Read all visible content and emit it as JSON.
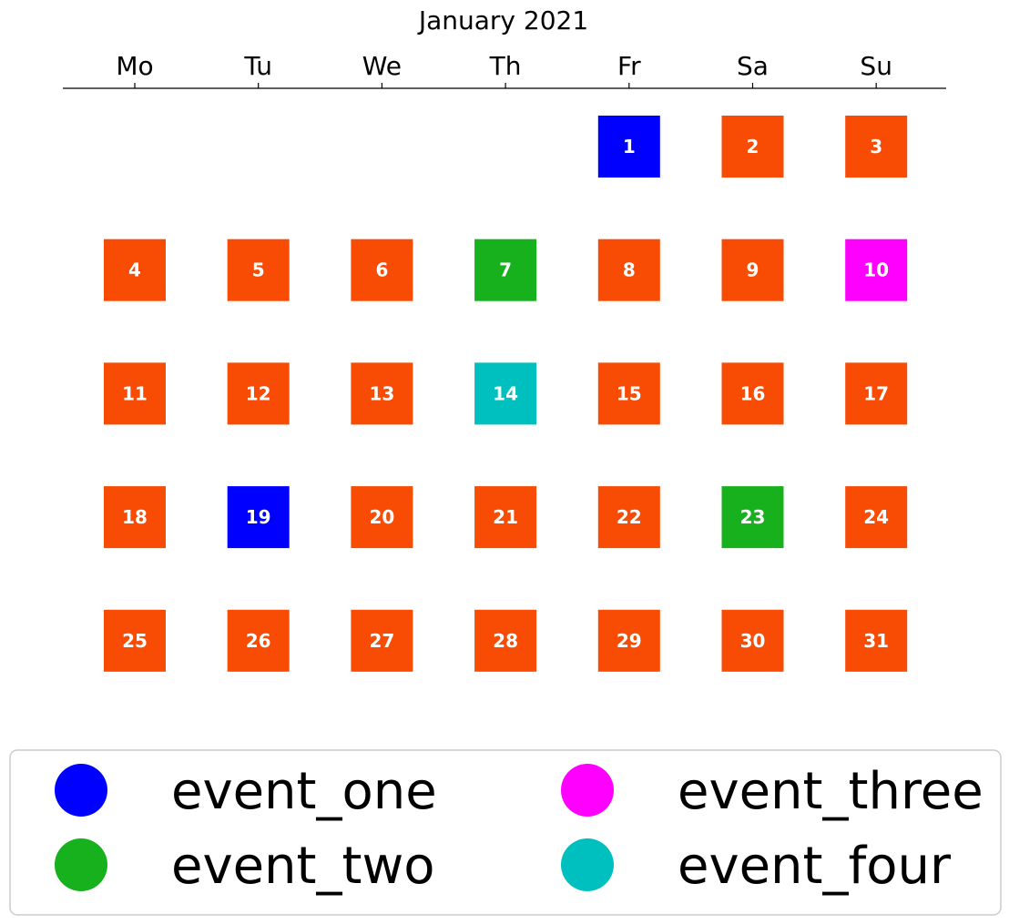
{
  "chart_data": {
    "type": "heatmap",
    "title": "January 2021",
    "weekdays": [
      "Mo",
      "Tu",
      "We",
      "Th",
      "Fr",
      "Sa",
      "Su"
    ],
    "first_weekday_index": 4,
    "days_in_month": 31,
    "default_color": "#f84b04",
    "days": [
      {
        "day": "1",
        "event": "event_one"
      },
      {
        "day": "2",
        "event": null
      },
      {
        "day": "3",
        "event": null
      },
      {
        "day": "4",
        "event": null
      },
      {
        "day": "5",
        "event": null
      },
      {
        "day": "6",
        "event": null
      },
      {
        "day": "7",
        "event": "event_two"
      },
      {
        "day": "8",
        "event": null
      },
      {
        "day": "9",
        "event": null
      },
      {
        "day": "10",
        "event": "event_three"
      },
      {
        "day": "11",
        "event": null
      },
      {
        "day": "12",
        "event": null
      },
      {
        "day": "13",
        "event": null
      },
      {
        "day": "14",
        "event": "event_four"
      },
      {
        "day": "15",
        "event": null
      },
      {
        "day": "16",
        "event": null
      },
      {
        "day": "17",
        "event": null
      },
      {
        "day": "18",
        "event": null
      },
      {
        "day": "19",
        "event": "event_one"
      },
      {
        "day": "20",
        "event": null
      },
      {
        "day": "21",
        "event": null
      },
      {
        "day": "22",
        "event": null
      },
      {
        "day": "23",
        "event": "event_two"
      },
      {
        "day": "24",
        "event": null
      },
      {
        "day": "25",
        "event": null
      },
      {
        "day": "26",
        "event": null
      },
      {
        "day": "27",
        "event": null
      },
      {
        "day": "28",
        "event": null
      },
      {
        "day": "29",
        "event": null
      },
      {
        "day": "30",
        "event": null
      },
      {
        "day": "31",
        "event": null
      }
    ],
    "legend": [
      {
        "name": "event_one",
        "color": "#0000ff"
      },
      {
        "name": "event_three",
        "color": "#ff00ff"
      },
      {
        "name": "event_two",
        "color": "#17b11d"
      },
      {
        "name": "event_four",
        "color": "#00bfbf"
      }
    ],
    "legend_placement": "bottom"
  }
}
